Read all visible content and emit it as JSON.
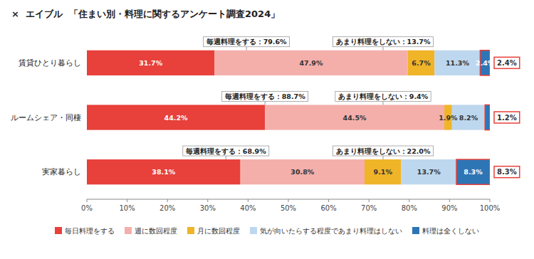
{
  "chart_data": {
    "type": "bar",
    "orientation": "horizontal",
    "stacked": true,
    "title": "×  エイブル  「住まい別・料理に関するアンケート調査2024」",
    "categories": [
      "実家暮らし",
      "ルームシェア・同棲",
      "賃貸ひとり暮らし"
    ],
    "series": [
      {
        "name": "毎日料理をする",
        "color": "#E8403A",
        "values": [
          38.1,
          44.2,
          31.7
        ],
        "value_labels": [
          "38.1%",
          "44.2%",
          "31.7%"
        ]
      },
      {
        "name": "週に数回程度",
        "color": "#F4AFAB",
        "values": [
          30.8,
          44.5,
          47.9
        ],
        "value_labels": [
          "30.8%",
          "44.5%",
          "47.9%"
        ]
      },
      {
        "name": "月に数回程度",
        "color": "#F0B429",
        "values": [
          9.1,
          1.9,
          6.7
        ],
        "value_labels": [
          "9.1%",
          "1.9%",
          "6.7%"
        ]
      },
      {
        "name": "気が向いたらする程度であまり料理はしない",
        "color": "#BDD7EE",
        "values": [
          13.7,
          8.2,
          11.3
        ],
        "value_labels": [
          "13.7%",
          "8.2%",
          "11.3%"
        ]
      },
      {
        "name": "料理は全くしない",
        "color": "#2E75B6",
        "values": [
          8.3,
          1.2,
          2.4
        ],
        "value_labels": [
          "8.3%",
          null,
          "2.4%"
        ]
      }
    ],
    "data_labels": true,
    "xlim": [
      0,
      100
    ],
    "xticks": [
      {
        "value": 0,
        "label": "0%"
      },
      {
        "value": 10,
        "label": "10%"
      },
      {
        "value": 20,
        "label": "20%"
      },
      {
        "value": 30,
        "label": "30%"
      },
      {
        "value": 40,
        "label": "40%"
      },
      {
        "value": 50,
        "label": "50%"
      },
      {
        "value": 60,
        "label": "60%"
      },
      {
        "value": 70,
        "label": "70%"
      },
      {
        "value": 80,
        "label": "80%"
      },
      {
        "value": 90,
        "label": "90%"
      },
      {
        "value": 100,
        "label": "100%"
      }
    ],
    "grid": false,
    "legend": "bottom",
    "annotations": [
      {
        "text": "毎週料理をする：68.9%",
        "category": "実家暮らし",
        "x": 34.5
      },
      {
        "text": "あまり料理をしない：22.0%",
        "category": "実家暮らし",
        "x": 73.5
      },
      {
        "text": "毎週料理をする：88.7%",
        "category": "ルームシェア・同棲",
        "x": 44.2
      },
      {
        "text": "あまり料理をしない：9.4%",
        "category": "ルームシェア・同棲",
        "x": 73.5
      },
      {
        "text": "毎週料理をする：79.6%",
        "category": "賃貸ひとり暮らし",
        "x": 39.6
      },
      {
        "text": "あまり料理をしない：13.7%",
        "category": "賃貸ひとり暮らし",
        "x": 73.5
      }
    ],
    "side_labels": [
      {
        "text": "8.3%",
        "category": "実家暮らし"
      },
      {
        "text": "1.2%",
        "category": "ルームシェア・同棲"
      },
      {
        "text": "2.4%",
        "category": "賃貸ひとり暮らし"
      }
    ]
  }
}
